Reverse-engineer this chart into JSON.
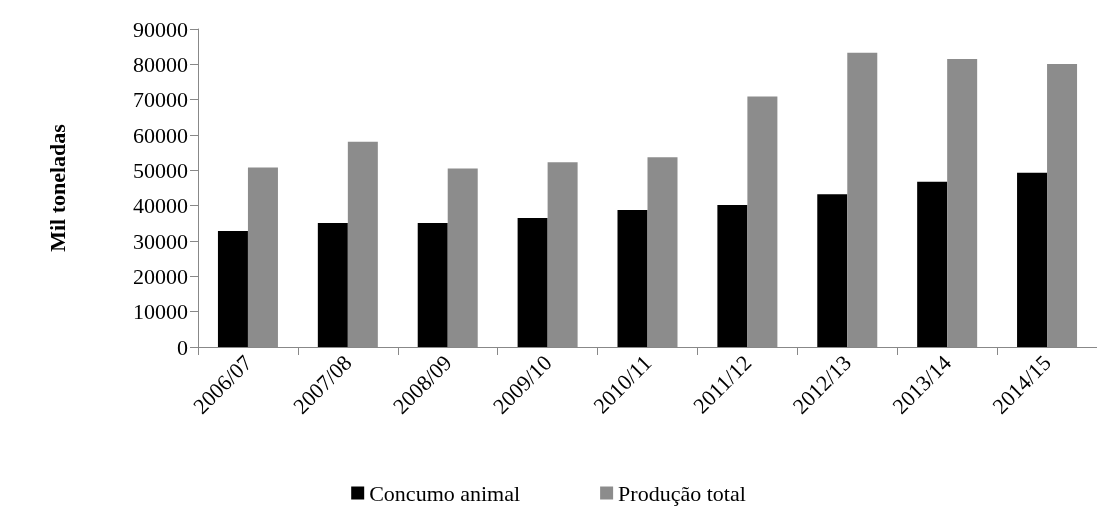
{
  "chart_data": {
    "type": "bar",
    "ylabel": "Mil toneladas",
    "categories": [
      "2006/07",
      "2007/08",
      "2008/09",
      "2009/10",
      "2010/11",
      "2011/12",
      "2012/13",
      "2013/14",
      "2014/15"
    ],
    "series": [
      {
        "name": "Concumo animal",
        "color": "#000000",
        "values": [
          32800,
          35100,
          35100,
          36500,
          38800,
          40200,
          43200,
          46800,
          49300
        ]
      },
      {
        "name": "Produção total",
        "color": "#8c8c8c",
        "values": [
          50800,
          58100,
          50500,
          52300,
          53700,
          70900,
          83300,
          81500,
          80100
        ]
      }
    ],
    "ylim": [
      0,
      90000
    ],
    "yticks": [
      0,
      10000,
      20000,
      30000,
      40000,
      50000,
      60000,
      70000,
      80000,
      90000
    ],
    "grid": false,
    "legend": "bottom"
  }
}
